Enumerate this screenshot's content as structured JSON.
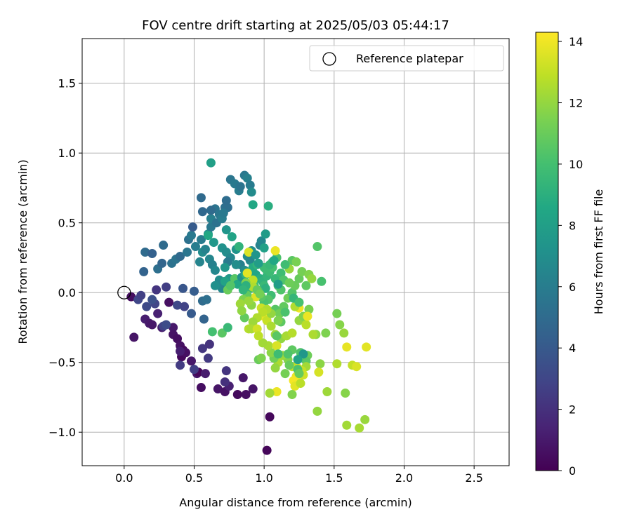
{
  "chart_data": {
    "type": "scatter",
    "title": "FOV centre drift starting at 2025/05/03 05:44:17",
    "xlabel": "Angular distance from reference (arcmin)",
    "ylabel": "Rotation from reference (arcmin)",
    "xlim": [
      -0.3,
      2.75
    ],
    "ylim": [
      -1.24,
      1.82
    ],
    "xticks": [
      0.0,
      0.5,
      1.0,
      1.5,
      2.0,
      2.5
    ],
    "xtick_labels": [
      "0.0",
      "0.5",
      "1.0",
      "1.5",
      "2.0",
      "2.5"
    ],
    "yticks": [
      -1.0,
      -0.5,
      0.0,
      0.5,
      1.0,
      1.5
    ],
    "ytick_labels": [
      "−1.0",
      "−0.5",
      "0.0",
      "0.5",
      "1.0",
      "1.5"
    ],
    "grid": true,
    "legend": {
      "placement": "top-right",
      "entries": [
        "Reference platepar"
      ]
    },
    "reference_point": {
      "x": 0.0,
      "y": 0.0
    },
    "colorbar": {
      "label": "Hours from first FF file",
      "colormap": "viridis",
      "range": [
        0,
        14.3
      ],
      "ticks": [
        0,
        2,
        4,
        6,
        8,
        10,
        12,
        14
      ],
      "tick_labels": [
        "0",
        "2",
        "4",
        "6",
        "8",
        "10",
        "12",
        "14"
      ]
    },
    "points": [
      [
        0.05,
        -0.03,
        0.5
      ],
      [
        0.07,
        -0.32,
        0.8
      ],
      [
        0.15,
        -0.19,
        1.2
      ],
      [
        0.18,
        -0.22,
        1.0
      ],
      [
        0.2,
        -0.23,
        0.9
      ],
      [
        0.24,
        -0.15,
        1.3
      ],
      [
        0.27,
        -0.25,
        1.1
      ],
      [
        0.32,
        -0.07,
        0.6
      ],
      [
        0.35,
        -0.25,
        1.0
      ],
      [
        0.35,
        -0.3,
        0.7
      ],
      [
        0.38,
        -0.33,
        0.5
      ],
      [
        0.4,
        -0.38,
        0.7
      ],
      [
        0.42,
        -0.41,
        0.4
      ],
      [
        0.41,
        -0.46,
        0.3
      ],
      [
        0.44,
        -0.43,
        0.6
      ],
      [
        0.48,
        -0.49,
        0.9
      ],
      [
        0.52,
        -0.58,
        1.0
      ],
      [
        0.55,
        -0.68,
        0.5
      ],
      [
        0.53,
        -0.57,
        0.2
      ],
      [
        0.58,
        -0.58,
        1.1
      ],
      [
        0.67,
        -0.69,
        0.8
      ],
      [
        0.72,
        -0.71,
        0.7
      ],
      [
        0.75,
        -0.67,
        1.3
      ],
      [
        0.81,
        -0.73,
        0.4
      ],
      [
        0.85,
        -0.61,
        0.9
      ],
      [
        0.87,
        -0.73,
        0.6
      ],
      [
        0.92,
        -0.69,
        0.8
      ],
      [
        1.04,
        -0.89,
        0.3
      ],
      [
        1.02,
        -1.13,
        0.2
      ],
      [
        0.4,
        -0.42,
        1.2
      ],
      [
        0.72,
        -0.64,
        2.0
      ],
      [
        0.73,
        -0.56,
        2.2
      ],
      [
        0.6,
        -0.47,
        2.4
      ],
      [
        0.56,
        -0.4,
        2.3
      ],
      [
        0.61,
        -0.37,
        2.1
      ],
      [
        0.5,
        -0.55,
        2.6
      ],
      [
        0.4,
        -0.52,
        2.5
      ],
      [
        0.28,
        -0.24,
        2.8
      ],
      [
        0.3,
        -0.23,
        3.3
      ],
      [
        0.22,
        -0.08,
        2.9
      ],
      [
        0.1,
        -0.05,
        3.0
      ],
      [
        0.16,
        -0.1,
        3.2
      ],
      [
        0.2,
        -0.05,
        3.5
      ],
      [
        0.12,
        -0.02,
        2.7
      ],
      [
        0.23,
        0.02,
        2.2
      ],
      [
        0.3,
        0.04,
        2.6
      ],
      [
        0.38,
        -0.09,
        3.1
      ],
      [
        0.43,
        -0.1,
        2.8
      ],
      [
        0.42,
        0.03,
        3.8
      ],
      [
        0.48,
        -0.15,
        4.0
      ],
      [
        0.57,
        -0.19,
        4.6
      ],
      [
        0.5,
        0.01,
        4.2
      ],
      [
        0.56,
        -0.06,
        5.0
      ],
      [
        0.59,
        -0.05,
        5.2
      ],
      [
        0.14,
        0.15,
        4.5
      ],
      [
        0.15,
        0.29,
        5.0
      ],
      [
        0.2,
        0.28,
        4.4
      ],
      [
        0.24,
        0.17,
        5.2
      ],
      [
        0.27,
        0.21,
        4.7
      ],
      [
        0.28,
        0.34,
        5.0
      ],
      [
        0.34,
        0.21,
        5.4
      ],
      [
        0.37,
        0.24,
        5.5
      ],
      [
        0.4,
        0.26,
        4.9
      ],
      [
        0.45,
        0.29,
        5.6
      ],
      [
        0.46,
        0.38,
        5.3
      ],
      [
        0.48,
        0.41,
        5.8
      ],
      [
        0.49,
        0.47,
        4.1
      ],
      [
        0.51,
        0.33,
        6.0
      ],
      [
        0.54,
        0.22,
        6.4
      ],
      [
        0.55,
        0.38,
        5.9
      ],
      [
        0.56,
        0.29,
        6.8
      ],
      [
        0.58,
        0.31,
        6.3
      ],
      [
        0.6,
        0.42,
        7.0
      ],
      [
        0.61,
        0.24,
        6.5
      ],
      [
        0.63,
        0.2,
        6.2
      ],
      [
        0.65,
        0.16,
        6.6
      ],
      [
        0.62,
        0.47,
        5.7
      ],
      [
        0.62,
        0.53,
        6.1
      ],
      [
        0.65,
        0.6,
        5.5
      ],
      [
        0.68,
        0.56,
        5.6
      ],
      [
        0.66,
        0.5,
        5.4
      ],
      [
        0.7,
        0.53,
        6.0
      ],
      [
        0.72,
        0.61,
        5.3
      ],
      [
        0.74,
        0.61,
        5.2
      ],
      [
        0.71,
        0.57,
        5.8
      ],
      [
        0.73,
        0.66,
        5.1
      ],
      [
        0.76,
        0.81,
        5.6
      ],
      [
        0.79,
        0.78,
        5.8
      ],
      [
        0.82,
        0.73,
        6.0
      ],
      [
        0.83,
        0.76,
        5.5
      ],
      [
        0.86,
        0.84,
        5.7
      ],
      [
        0.88,
        0.82,
        6.2
      ],
      [
        0.9,
        0.77,
        5.9
      ],
      [
        0.91,
        0.72,
        6.8
      ],
      [
        0.92,
        0.63,
        8.5
      ],
      [
        0.62,
        0.93,
        8.0
      ],
      [
        0.62,
        0.59,
        5.0
      ],
      [
        0.56,
        0.58,
        4.8
      ],
      [
        0.55,
        0.68,
        4.9
      ],
      [
        0.6,
        0.41,
        8.5
      ],
      [
        0.64,
        0.36,
        7.5
      ],
      [
        0.7,
        0.32,
        7.2
      ],
      [
        0.73,
        0.29,
        6.9
      ],
      [
        0.76,
        0.25,
        6.6
      ],
      [
        0.74,
        0.22,
        5.9
      ],
      [
        0.77,
        0.4,
        8.3
      ],
      [
        0.8,
        0.31,
        7.3
      ],
      [
        0.83,
        0.2,
        6.1
      ],
      [
        0.86,
        0.16,
        6.9
      ],
      [
        0.88,
        0.26,
        6.8
      ],
      [
        0.9,
        0.23,
        6.5
      ],
      [
        0.91,
        0.3,
        7.1
      ],
      [
        0.97,
        0.34,
        6.3
      ],
      [
        0.98,
        0.37,
        6.6
      ],
      [
        1.01,
        0.42,
        7.8
      ],
      [
        1.03,
        0.62,
        8.9
      ],
      [
        0.73,
        0.45,
        7.4
      ],
      [
        0.72,
        0.18,
        7.5
      ],
      [
        0.68,
        0.09,
        7.0
      ],
      [
        0.7,
        0.03,
        6.5
      ],
      [
        0.67,
        0.06,
        6.7
      ],
      [
        0.75,
        0.1,
        7.6
      ],
      [
        0.65,
        0.05,
        7.1
      ],
      [
        0.72,
        0.08,
        8.2
      ],
      [
        0.79,
        0.1,
        10.5
      ],
      [
        0.81,
        0.06,
        8.6
      ],
      [
        0.84,
        0.11,
        7.2
      ],
      [
        0.87,
        0.13,
        9.1
      ],
      [
        0.9,
        0.15,
        8.1
      ],
      [
        0.92,
        0.18,
        8.7
      ],
      [
        0.95,
        0.2,
        9.3
      ],
      [
        0.94,
        0.13,
        8.4
      ],
      [
        0.97,
        0.1,
        8.9
      ],
      [
        0.99,
        0.08,
        9.2
      ],
      [
        1.0,
        0.05,
        9.6
      ],
      [
        1.01,
        0.03,
        9.1
      ],
      [
        1.02,
        0.12,
        9.4
      ],
      [
        1.04,
        0.15,
        9.7
      ],
      [
        1.06,
        0.18,
        10.0
      ],
      [
        1.08,
        0.1,
        9.5
      ],
      [
        1.1,
        0.05,
        10.1
      ],
      [
        1.12,
        0.02,
        10.3
      ],
      [
        1.05,
        -0.02,
        9.8
      ],
      [
        1.03,
        -0.05,
        10.4
      ],
      [
        1.0,
        -0.07,
        10.2
      ],
      [
        0.98,
        -0.03,
        10.6
      ],
      [
        0.96,
        0.01,
        9.9
      ],
      [
        0.93,
        0.05,
        10.0
      ],
      [
        0.9,
        0.03,
        9.4
      ],
      [
        0.88,
        -0.02,
        10.8
      ],
      [
        0.85,
        -0.05,
        11.5
      ],
      [
        0.83,
        -0.08,
        12.2
      ],
      [
        1.08,
        -0.12,
        10.5
      ],
      [
        1.11,
        -0.15,
        11.2
      ],
      [
        1.14,
        -0.1,
        10.8
      ],
      [
        1.17,
        -0.04,
        11.1
      ],
      [
        1.2,
        0.0,
        10.4
      ],
      [
        1.22,
        0.05,
        11.0
      ],
      [
        1.25,
        0.1,
        10.9
      ],
      [
        1.27,
        0.15,
        11.3
      ],
      [
        1.3,
        0.05,
        10.7
      ],
      [
        1.32,
        0.13,
        11.6
      ],
      [
        1.34,
        0.1,
        12.0
      ],
      [
        1.2,
        0.23,
        10.6
      ],
      [
        1.23,
        0.22,
        11.4
      ],
      [
        1.18,
        0.17,
        12.1
      ],
      [
        1.38,
        0.33,
        10.4
      ],
      [
        1.41,
        0.08,
        10.1
      ],
      [
        1.15,
        0.2,
        9.8
      ],
      [
        1.09,
        0.25,
        10.2
      ],
      [
        1.06,
        0.22,
        9.6
      ],
      [
        1.0,
        0.18,
        9.9
      ],
      [
        1.08,
        0.3,
        13.9
      ],
      [
        0.89,
        0.29,
        13.5
      ],
      [
        0.88,
        0.14,
        13.7
      ],
      [
        0.92,
        0.09,
        12.9
      ],
      [
        0.94,
        -0.03,
        13.6
      ],
      [
        0.98,
        -0.11,
        13.2
      ],
      [
        1.0,
        -0.17,
        13.8
      ],
      [
        1.02,
        -0.2,
        13.1
      ],
      [
        1.05,
        -0.24,
        12.5
      ],
      [
        1.08,
        -0.3,
        12.2
      ],
      [
        1.12,
        -0.33,
        11.9
      ],
      [
        1.16,
        -0.31,
        12.4
      ],
      [
        1.2,
        -0.29,
        12.7
      ],
      [
        1.25,
        -0.2,
        12.0
      ],
      [
        1.28,
        -0.17,
        11.6
      ],
      [
        1.3,
        -0.23,
        12.8
      ],
      [
        1.32,
        -0.12,
        11.4
      ],
      [
        1.37,
        -0.3,
        11.9
      ],
      [
        1.44,
        -0.29,
        11.5
      ],
      [
        1.52,
        -0.15,
        11.3
      ],
      [
        1.54,
        -0.23,
        11.7
      ],
      [
        1.57,
        -0.29,
        12.1
      ],
      [
        1.59,
        -0.39,
        13.8
      ],
      [
        1.52,
        -0.51,
        12.6
      ],
      [
        1.4,
        -0.51,
        11.8
      ],
      [
        1.31,
        -0.45,
        11.1
      ],
      [
        1.26,
        -0.43,
        10.3
      ],
      [
        1.3,
        -0.49,
        10.6
      ],
      [
        1.3,
        -0.53,
        12.3
      ],
      [
        1.27,
        -0.56,
        13.0
      ],
      [
        1.24,
        -0.54,
        13.6
      ],
      [
        1.23,
        -0.6,
        13.9
      ],
      [
        1.21,
        -0.63,
        14.1
      ],
      [
        1.22,
        -0.67,
        13.7
      ],
      [
        1.26,
        -0.65,
        12.8
      ],
      [
        1.28,
        -0.59,
        13.3
      ],
      [
        1.2,
        -0.53,
        12.9
      ],
      [
        1.17,
        -0.48,
        11.6
      ],
      [
        1.13,
        -0.45,
        12.1
      ],
      [
        1.1,
        -0.5,
        12.5
      ],
      [
        1.08,
        -0.54,
        12.0
      ],
      [
        1.07,
        -0.47,
        11.2
      ],
      [
        1.05,
        -0.43,
        11.8
      ],
      [
        1.03,
        -0.38,
        12.4
      ],
      [
        0.99,
        -0.36,
        12.3
      ],
      [
        0.96,
        -0.48,
        11.0
      ],
      [
        0.98,
        -0.47,
        11.5
      ],
      [
        1.09,
        -0.38,
        13.5
      ],
      [
        1.15,
        -0.58,
        11.3
      ],
      [
        1.18,
        -0.52,
        10.9
      ],
      [
        1.09,
        -0.71,
        13.9
      ],
      [
        1.04,
        -0.72,
        12.3
      ],
      [
        1.2,
        -0.73,
        11.6
      ],
      [
        1.38,
        -0.85,
        12.0
      ],
      [
        1.45,
        -0.71,
        12.2
      ],
      [
        1.39,
        -0.57,
        13.4
      ],
      [
        1.58,
        -0.72,
        11.7
      ],
      [
        1.59,
        -0.95,
        12.3
      ],
      [
        1.63,
        -0.52,
        13.0
      ],
      [
        1.66,
        -0.53,
        13.5
      ],
      [
        1.68,
        -0.97,
        12.4
      ],
      [
        1.72,
        -0.91,
        12.1
      ],
      [
        1.73,
        -0.39,
        13.7
      ],
      [
        1.35,
        -0.3,
        12.5
      ],
      [
        1.31,
        -0.17,
        13.9
      ],
      [
        1.25,
        -0.11,
        14.0
      ],
      [
        1.22,
        -0.1,
        12.6
      ],
      [
        1.15,
        -0.14,
        10.2
      ],
      [
        1.12,
        -0.21,
        10.7
      ],
      [
        1.1,
        -0.2,
        11.5
      ],
      [
        1.05,
        -0.15,
        12.0
      ],
      [
        1.02,
        -0.12,
        12.6
      ],
      [
        0.99,
        -0.14,
        12.8
      ],
      [
        0.95,
        -0.18,
        12.6
      ],
      [
        0.92,
        -0.21,
        12.2
      ],
      [
        0.89,
        -0.26,
        12.7
      ],
      [
        0.91,
        -0.26,
        12.5
      ],
      [
        0.95,
        -0.26,
        13.3
      ],
      [
        0.96,
        -0.31,
        12.9
      ],
      [
        0.91,
        -0.09,
        11.8
      ],
      [
        0.89,
        -0.06,
        12.1
      ],
      [
        0.87,
        0.07,
        11.5
      ],
      [
        0.92,
        0.04,
        12.6
      ],
      [
        0.95,
        0.02,
        10.9
      ],
      [
        0.97,
        -0.01,
        11.3
      ],
      [
        0.87,
        0.05,
        9.1
      ],
      [
        0.85,
        0.02,
        9.3
      ],
      [
        1.01,
        0.17,
        9.7
      ],
      [
        1.04,
        0.2,
        9.5
      ],
      [
        1.12,
        0.14,
        9.8
      ],
      [
        1.14,
        0.09,
        10.3
      ],
      [
        1.18,
        0.07,
        11.1
      ],
      [
        0.82,
        0.33,
        9.2
      ],
      [
        0.8,
        0.2,
        6.9
      ],
      [
        0.94,
        0.27,
        7.4
      ],
      [
        0.96,
        0.21,
        7.9
      ],
      [
        1.07,
        0.23,
        8.5
      ],
      [
        1.0,
        0.32,
        8.1
      ],
      [
        1.1,
        0.06,
        7.9
      ],
      [
        1.21,
        -0.04,
        9.4
      ],
      [
        1.25,
        -0.07,
        10.1
      ],
      [
        1.28,
        -0.44,
        7.5
      ],
      [
        1.24,
        -0.48,
        8.3
      ],
      [
        1.24,
        -0.55,
        10.2
      ],
      [
        1.25,
        -0.58,
        10.9
      ],
      [
        1.2,
        -0.41,
        10.7
      ],
      [
        1.17,
        -0.44,
        10.3
      ],
      [
        1.1,
        -0.44,
        9.8
      ],
      [
        0.7,
        -0.29,
        10.6
      ],
      [
        0.63,
        -0.28,
        10.0
      ],
      [
        0.74,
        -0.25,
        9.6
      ],
      [
        0.86,
        -0.18,
        10.8
      ],
      [
        0.84,
        -0.13,
        11.9
      ],
      [
        0.74,
        0.02,
        11.0
      ],
      [
        0.76,
        0.05,
        10.4
      ],
      [
        1.09,
        -0.31,
        10.6
      ]
    ]
  }
}
